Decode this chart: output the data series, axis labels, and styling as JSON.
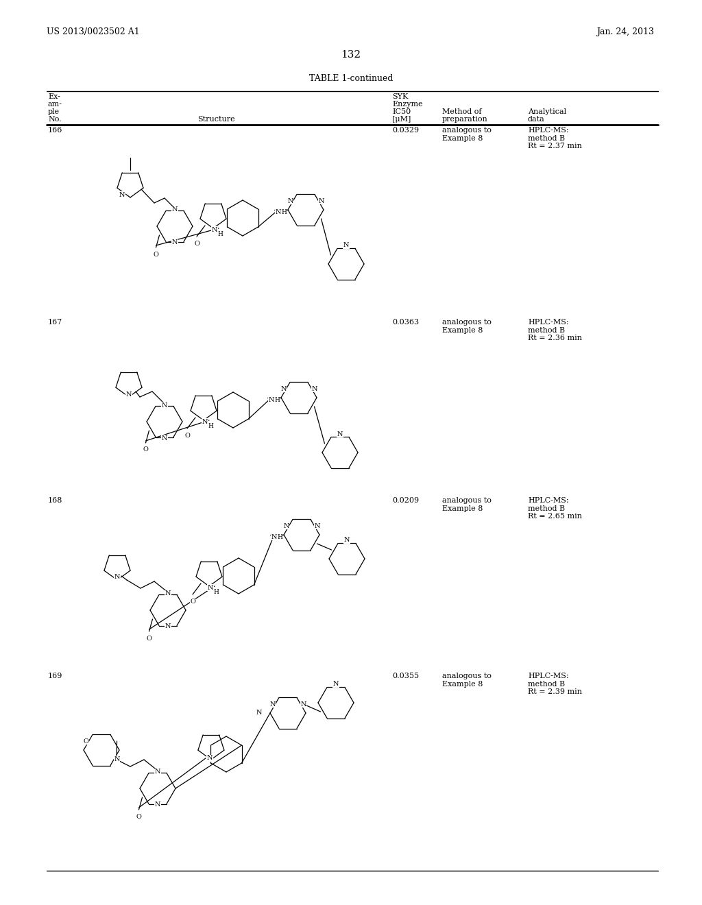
{
  "patent_number": "US 2013/0023502 A1",
  "date": "Jan. 24, 2013",
  "page_number": "132",
  "table_title": "TABLE 1-continued",
  "background_color": "#ffffff",
  "rows": [
    {
      "example": "166",
      "ic50": "0.0329",
      "method": "analogous to\nExample 8",
      "analytical": "HPLC-MS:\nmethod B\nRt = 2.37 min"
    },
    {
      "example": "167",
      "ic50": "0.0363",
      "method": "analogous to\nExample 8",
      "analytical": "HPLC-MS:\nmethod B\nRt = 2.36 min"
    },
    {
      "example": "168",
      "ic50": "0.0209",
      "method": "analogous to\nExample 8",
      "analytical": "HPLC-MS:\nmethod B\nRt = 2.65 min"
    },
    {
      "example": "169",
      "ic50": "0.0355",
      "method": "analogous to\nExample 8",
      "analytical": "HPLC-MS:\nmethod B\nRt = 2.39 min"
    }
  ]
}
